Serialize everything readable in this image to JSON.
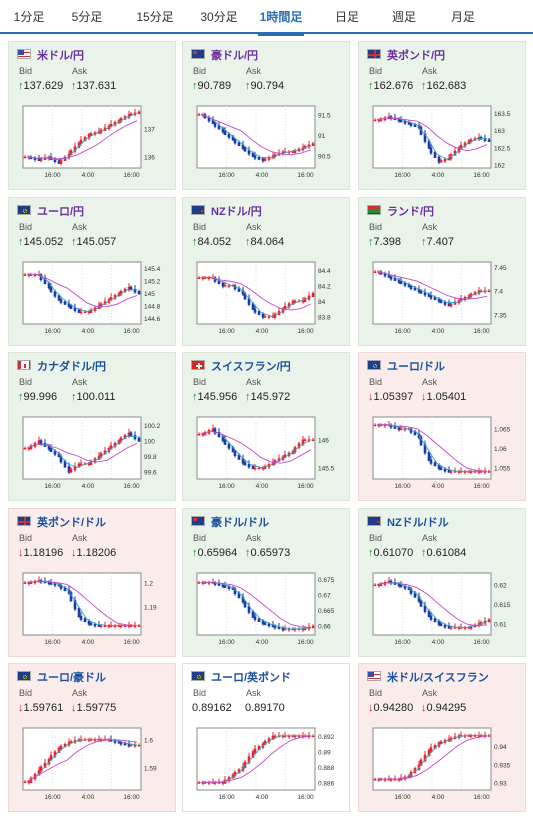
{
  "tabs": [
    {
      "label": "1分足",
      "active": false
    },
    {
      "label": "5分足",
      "active": false
    },
    {
      "label": "15分足",
      "active": false
    },
    {
      "label": "30分足",
      "active": false
    },
    {
      "label": "1時間足",
      "active": true
    },
    {
      "label": "日足",
      "active": false
    },
    {
      "label": "週足",
      "active": false
    },
    {
      "label": "月足",
      "active": false
    }
  ],
  "labels": {
    "bid": "Bid",
    "ask": "Ask"
  },
  "colors": {
    "up": "#1f8a2b",
    "down": "#c42020",
    "candle_up": "#e8242a",
    "candle_down": "#1a3aa8",
    "ma_short": "#36a0c8",
    "ma_long": "#c847c8",
    "accent": "#2a6db5"
  },
  "cards": [
    {
      "pair": "米ドル/円",
      "dir": "up",
      "bid": "137.629",
      "ask": "137.631",
      "flag": "us",
      "chart_data": {
        "type": "candlestick",
        "xticks": [
          "16:00",
          "4:00",
          "16:00"
        ],
        "yticks": [
          "137",
          "136"
        ],
        "ylim": [
          135.6,
          137.8
        ],
        "trend": [
          136.0,
          135.9,
          136.0,
          135.8,
          136.1,
          136.5,
          136.8,
          136.9,
          137.1,
          137.3,
          137.5,
          137.6
        ]
      }
    },
    {
      "pair": "豪ドル/円",
      "dir": "up",
      "bid": "90.789",
      "ask": "90.794",
      "flag": "au",
      "chart_data": {
        "type": "candlestick",
        "xticks": [
          "16:00",
          "4:00",
          "16:00"
        ],
        "yticks": [
          "91.5",
          "91",
          "90.5"
        ],
        "ylim": [
          90.2,
          91.7
        ],
        "trend": [
          91.5,
          91.3,
          91.1,
          90.9,
          90.7,
          90.5,
          90.4,
          90.5,
          90.6,
          90.6,
          90.7,
          90.8
        ]
      }
    },
    {
      "pair": "英ポンド/円",
      "dir": "up",
      "bid": "162.676",
      "ask": "162.683",
      "flag": "gb",
      "chart_data": {
        "type": "candlestick",
        "xticks": [
          "16:00",
          "4:00",
          "16:00"
        ],
        "yticks": [
          "163.5",
          "163",
          "162.5",
          "162"
        ],
        "ylim": [
          161.9,
          163.7
        ],
        "trend": [
          163.3,
          163.4,
          163.3,
          163.2,
          163.1,
          162.5,
          162.1,
          162.2,
          162.5,
          162.7,
          162.8,
          162.7
        ]
      }
    },
    {
      "pair": "ユーロ/円",
      "dir": "up",
      "bid": "145.052",
      "ask": "145.057",
      "flag": "eu",
      "chart_data": {
        "type": "candlestick",
        "xticks": [
          "16:00",
          "4:00",
          "16:00"
        ],
        "yticks": [
          "145.4",
          "145.2",
          "145",
          "144.8",
          "144.6"
        ],
        "ylim": [
          144.5,
          145.5
        ],
        "trend": [
          145.3,
          145.3,
          145.1,
          144.9,
          144.8,
          144.7,
          144.7,
          144.8,
          144.9,
          145.0,
          145.1,
          145.0
        ]
      }
    },
    {
      "pair": "NZドル/円",
      "dir": "up",
      "bid": "84.052",
      "ask": "84.064",
      "flag": "nz",
      "chart_data": {
        "type": "candlestick",
        "xticks": [
          "16:00",
          "4:00",
          "16:00"
        ],
        "yticks": [
          "84.4",
          "84.2",
          "84",
          "83.8"
        ],
        "ylim": [
          83.7,
          84.5
        ],
        "trend": [
          84.3,
          84.3,
          84.2,
          84.2,
          84.1,
          83.9,
          83.8,
          83.8,
          83.9,
          84.0,
          84.0,
          84.1
        ]
      }
    },
    {
      "pair": "ランド/円",
      "dir": "up",
      "bid": "7.398",
      "ask": "7.407",
      "flag": "za",
      "chart_data": {
        "type": "candlestick",
        "xticks": [
          "16:00",
          "4:00",
          "16:00"
        ],
        "yticks": [
          "7.45",
          "7.4",
          "7.35"
        ],
        "ylim": [
          7.33,
          7.46
        ],
        "trend": [
          7.44,
          7.43,
          7.42,
          7.41,
          7.4,
          7.39,
          7.38,
          7.37,
          7.38,
          7.39,
          7.4,
          7.4
        ]
      }
    },
    {
      "pair": "カナダドル/円",
      "dir": "up",
      "bid": "99.996",
      "ask": "100.011",
      "flag": "ca",
      "chart_data": {
        "type": "candlestick",
        "xticks": [
          "16:00",
          "4:00",
          "16:00"
        ],
        "yticks": [
          "100.2",
          "100",
          "99.8",
          "99.6"
        ],
        "ylim": [
          99.5,
          100.3
        ],
        "trend": [
          99.9,
          100.0,
          99.9,
          99.8,
          99.6,
          99.7,
          99.7,
          99.8,
          99.9,
          100.0,
          100.1,
          100.0
        ]
      }
    },
    {
      "pair": "スイスフラン/円",
      "dir": "up",
      "bid": "145.956",
      "ask": "145.972",
      "flag": "ch",
      "chart_data": {
        "type": "candlestick",
        "xticks": [
          "16:00",
          "4:00",
          "16:00"
        ],
        "yticks": [
          "146",
          "145.5"
        ],
        "ylim": [
          145.3,
          146.4
        ],
        "trend": [
          146.1,
          146.2,
          146.0,
          145.8,
          145.6,
          145.5,
          145.5,
          145.6,
          145.7,
          145.8,
          146.0,
          146.0
        ]
      }
    },
    {
      "pair": "ユーロ/ドル",
      "dir": "down",
      "bid": "1.05397",
      "ask": "1.05401",
      "flag": "eu",
      "chart_data": {
        "type": "candlestick",
        "xticks": [
          "16:00",
          "4:00",
          "16:00"
        ],
        "yticks": [
          "1.065",
          "1.06",
          "1.055"
        ],
        "ylim": [
          1.052,
          1.068
        ],
        "trend": [
          1.066,
          1.066,
          1.065,
          1.065,
          1.063,
          1.057,
          1.055,
          1.054,
          1.054,
          1.054,
          1.054,
          1.054
        ]
      }
    },
    {
      "pair": "英ポンド/ドル",
      "dir": "down",
      "bid": "1.18196",
      "ask": "1.18206",
      "flag": "gb",
      "chart_data": {
        "type": "candlestick",
        "xticks": [
          "16:00",
          "4:00",
          "16:00"
        ],
        "yticks": [
          "1.2",
          "1.19"
        ],
        "ylim": [
          1.178,
          1.204
        ],
        "trend": [
          1.2,
          1.201,
          1.2,
          1.199,
          1.196,
          1.186,
          1.183,
          1.182,
          1.182,
          1.182,
          1.182,
          1.182
        ]
      }
    },
    {
      "pair": "豪ドル/ドル",
      "dir": "up",
      "bid": "0.65964",
      "ask": "0.65973",
      "flag": "au",
      "chart_data": {
        "type": "candlestick",
        "xticks": [
          "16:00",
          "4:00",
          "16:00"
        ],
        "yticks": [
          "0.675",
          "0.67",
          "0.665",
          "0.66"
        ],
        "ylim": [
          0.657,
          0.677
        ],
        "trend": [
          0.674,
          0.674,
          0.673,
          0.672,
          0.668,
          0.663,
          0.661,
          0.66,
          0.659,
          0.659,
          0.659,
          0.66
        ]
      }
    },
    {
      "pair": "NZドル/ドル",
      "dir": "up",
      "bid": "0.61070",
      "ask": "0.61084",
      "flag": "nz",
      "chart_data": {
        "type": "candlestick",
        "xticks": [
          "16:00",
          "4:00",
          "16:00"
        ],
        "yticks": [
          "0.62",
          "0.615",
          "0.61"
        ],
        "ylim": [
          0.607,
          0.623
        ],
        "trend": [
          0.62,
          0.621,
          0.62,
          0.619,
          0.616,
          0.612,
          0.61,
          0.609,
          0.609,
          0.609,
          0.61,
          0.611
        ]
      }
    },
    {
      "pair": "ユーロ/豪ドル",
      "dir": "down",
      "bid": "1.59761",
      "ask": "1.59775",
      "flag": "eu",
      "chart_data": {
        "type": "candlestick",
        "xticks": [
          "16:00",
          "4:00",
          "16:00"
        ],
        "yticks": [
          "1.6",
          "1.59"
        ],
        "ylim": [
          1.582,
          1.604
        ],
        "trend": [
          1.585,
          1.589,
          1.593,
          1.597,
          1.599,
          1.6,
          1.6,
          1.6,
          1.6,
          1.599,
          1.598,
          1.598
        ]
      }
    },
    {
      "pair": "ユーロ/英ポンド",
      "dir": "flat",
      "bid": "0.89162",
      "ask": "0.89170",
      "flag": "eu",
      "chart_data": {
        "type": "candlestick",
        "xticks": [
          "16:00",
          "4:00",
          "16:00"
        ],
        "yticks": [
          "0.892",
          "0.89",
          "0.888",
          "0.886"
        ],
        "ylim": [
          0.885,
          0.893
        ],
        "trend": [
          0.886,
          0.886,
          0.886,
          0.887,
          0.888,
          0.89,
          0.891,
          0.892,
          0.892,
          0.892,
          0.892,
          0.892
        ]
      }
    },
    {
      "pair": "米ドル/スイスフラン",
      "dir": "down",
      "bid": "0.94280",
      "ask": "0.94295",
      "flag": "us",
      "chart_data": {
        "type": "candlestick",
        "xticks": [
          "16:00",
          "4:00",
          "16:00"
        ],
        "yticks": [
          "0.94",
          "0.935",
          "0.93"
        ],
        "ylim": [
          0.928,
          0.945
        ],
        "trend": [
          0.931,
          0.931,
          0.931,
          0.932,
          0.935,
          0.939,
          0.941,
          0.942,
          0.943,
          0.943,
          0.943,
          0.943
        ]
      }
    }
  ]
}
